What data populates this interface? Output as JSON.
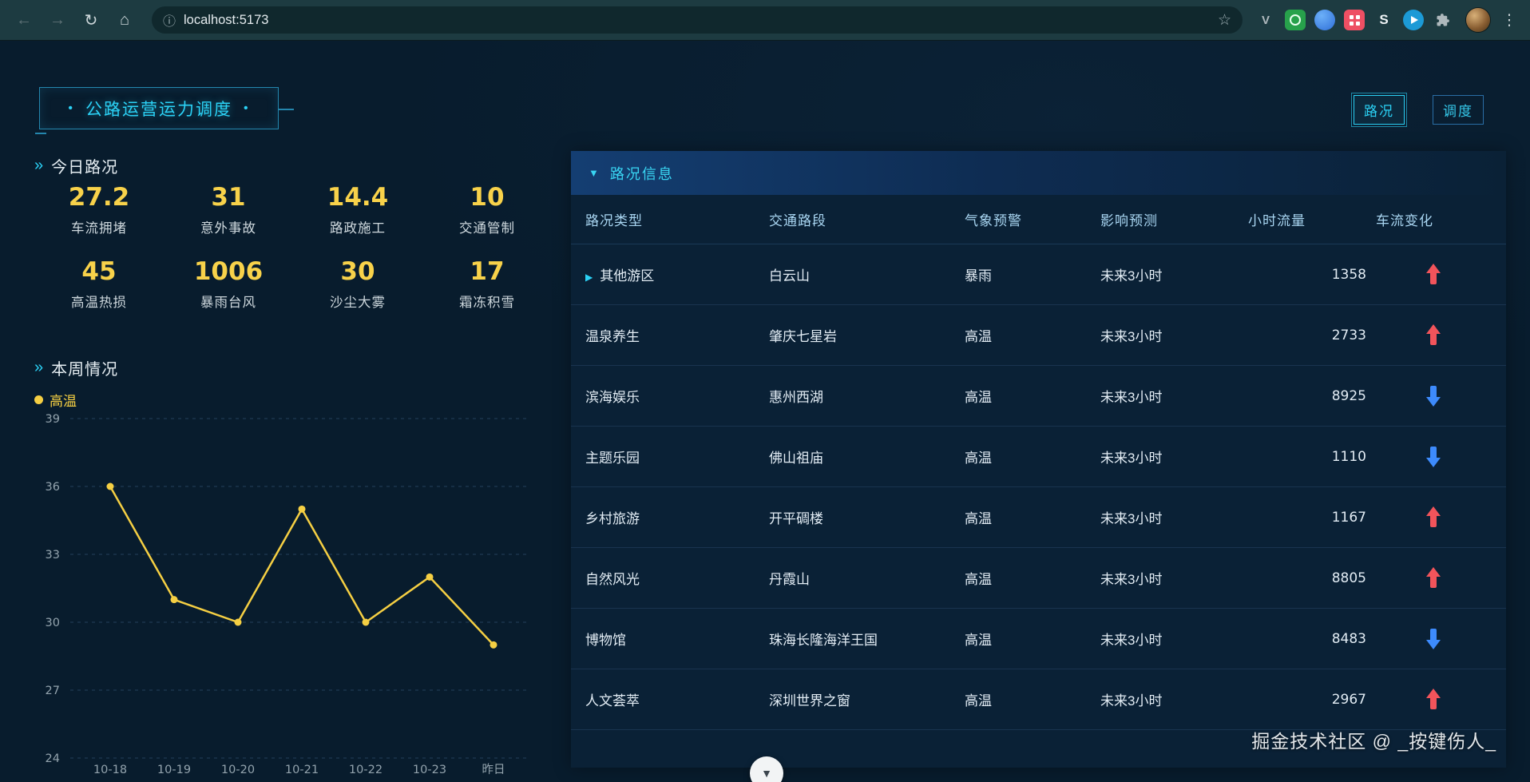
{
  "browser": {
    "url": "localhost:5173",
    "extensions": [
      {
        "id": "v-extension",
        "glyph": "V"
      },
      {
        "id": "green-extension",
        "glyph": ""
      },
      {
        "id": "blue-extension",
        "glyph": ""
      },
      {
        "id": "red-extension",
        "glyph": ""
      },
      {
        "id": "s-extension",
        "glyph": "S"
      },
      {
        "id": "blue-round-extension",
        "glyph": ""
      },
      {
        "id": "extensions-puzzle",
        "glyph": ""
      }
    ]
  },
  "header": {
    "title": "公路运营运力调度",
    "dot": "•",
    "mode_buttons": [
      {
        "label": "路况",
        "active": true
      },
      {
        "label": "调度",
        "active": false
      }
    ]
  },
  "today": {
    "heading": "今日路况",
    "stats": [
      {
        "value": "27.2",
        "label": "车流拥堵"
      },
      {
        "value": "31",
        "label": "意外事故"
      },
      {
        "value": "14.4",
        "label": "路政施工"
      },
      {
        "value": "10",
        "label": "交通管制"
      },
      {
        "value": "45",
        "label": "高温热损"
      },
      {
        "value": "1006",
        "label": "暴雨台风"
      },
      {
        "value": "30",
        "label": "沙尘大雾"
      },
      {
        "value": "17",
        "label": "霜冻积雪"
      }
    ]
  },
  "week": {
    "heading": "本周情况"
  },
  "chart_data": {
    "type": "line",
    "title": "本周情况",
    "x": [
      "10-18",
      "10-19",
      "10-20",
      "10-21",
      "10-22",
      "10-23",
      "昨日"
    ],
    "series": [
      {
        "name": "高温",
        "values": [
          36,
          31,
          30,
          35,
          30,
          32,
          29
        ]
      }
    ],
    "ylim": [
      24,
      39
    ],
    "yticks": [
      24,
      27,
      30,
      33,
      36,
      39
    ],
    "grid": true,
    "legend_position": "top-left",
    "color": "#f5cf43"
  },
  "panel": {
    "title": "路况信息",
    "columns": [
      "路况类型",
      "交通路段",
      "气象预警",
      "影响预测",
      "小时流量",
      "车流变化"
    ],
    "rows": [
      {
        "type": "其他游区",
        "road": "白云山",
        "weather": "暴雨",
        "forecast": "未来3小时",
        "flow": "1358",
        "trend": "up",
        "expandable": true
      },
      {
        "type": "温泉养生",
        "road": "肇庆七星岩",
        "weather": "高温",
        "forecast": "未来3小时",
        "flow": "2733",
        "trend": "up",
        "expandable": false
      },
      {
        "type": "滨海娱乐",
        "road": "惠州西湖",
        "weather": "高温",
        "forecast": "未来3小时",
        "flow": "8925",
        "trend": "down",
        "expandable": false
      },
      {
        "type": "主题乐园",
        "road": "佛山祖庙",
        "weather": "高温",
        "forecast": "未来3小时",
        "flow": "1110",
        "trend": "down",
        "expandable": false
      },
      {
        "type": "乡村旅游",
        "road": "开平碉楼",
        "weather": "高温",
        "forecast": "未来3小时",
        "flow": "1167",
        "trend": "up",
        "expandable": false
      },
      {
        "type": "自然风光",
        "road": "丹霞山",
        "weather": "高温",
        "forecast": "未来3小时",
        "flow": "8805",
        "trend": "up",
        "expandable": false
      },
      {
        "type": "博物馆",
        "road": "珠海长隆海洋王国",
        "weather": "高温",
        "forecast": "未来3小时",
        "flow": "8483",
        "trend": "down",
        "expandable": false
      },
      {
        "type": "人文荟萃",
        "road": "深圳世界之窗",
        "weather": "高温",
        "forecast": "未来3小时",
        "flow": "2967",
        "trend": "up",
        "expandable": false
      }
    ]
  },
  "watermark": {
    "text": "掘金技术社区 @ _按键伤人_"
  },
  "scroll_hint": "▼",
  "theme": {
    "accent": "#2bd2f6",
    "number": "#f8d24a",
    "up": "#f2545b",
    "down": "#3d8bfd",
    "line": "#f5cf43",
    "bg": "#081c2d",
    "panel": "#0a2136",
    "toolbar": "#1d3b41",
    "pill": "#10282d"
  }
}
